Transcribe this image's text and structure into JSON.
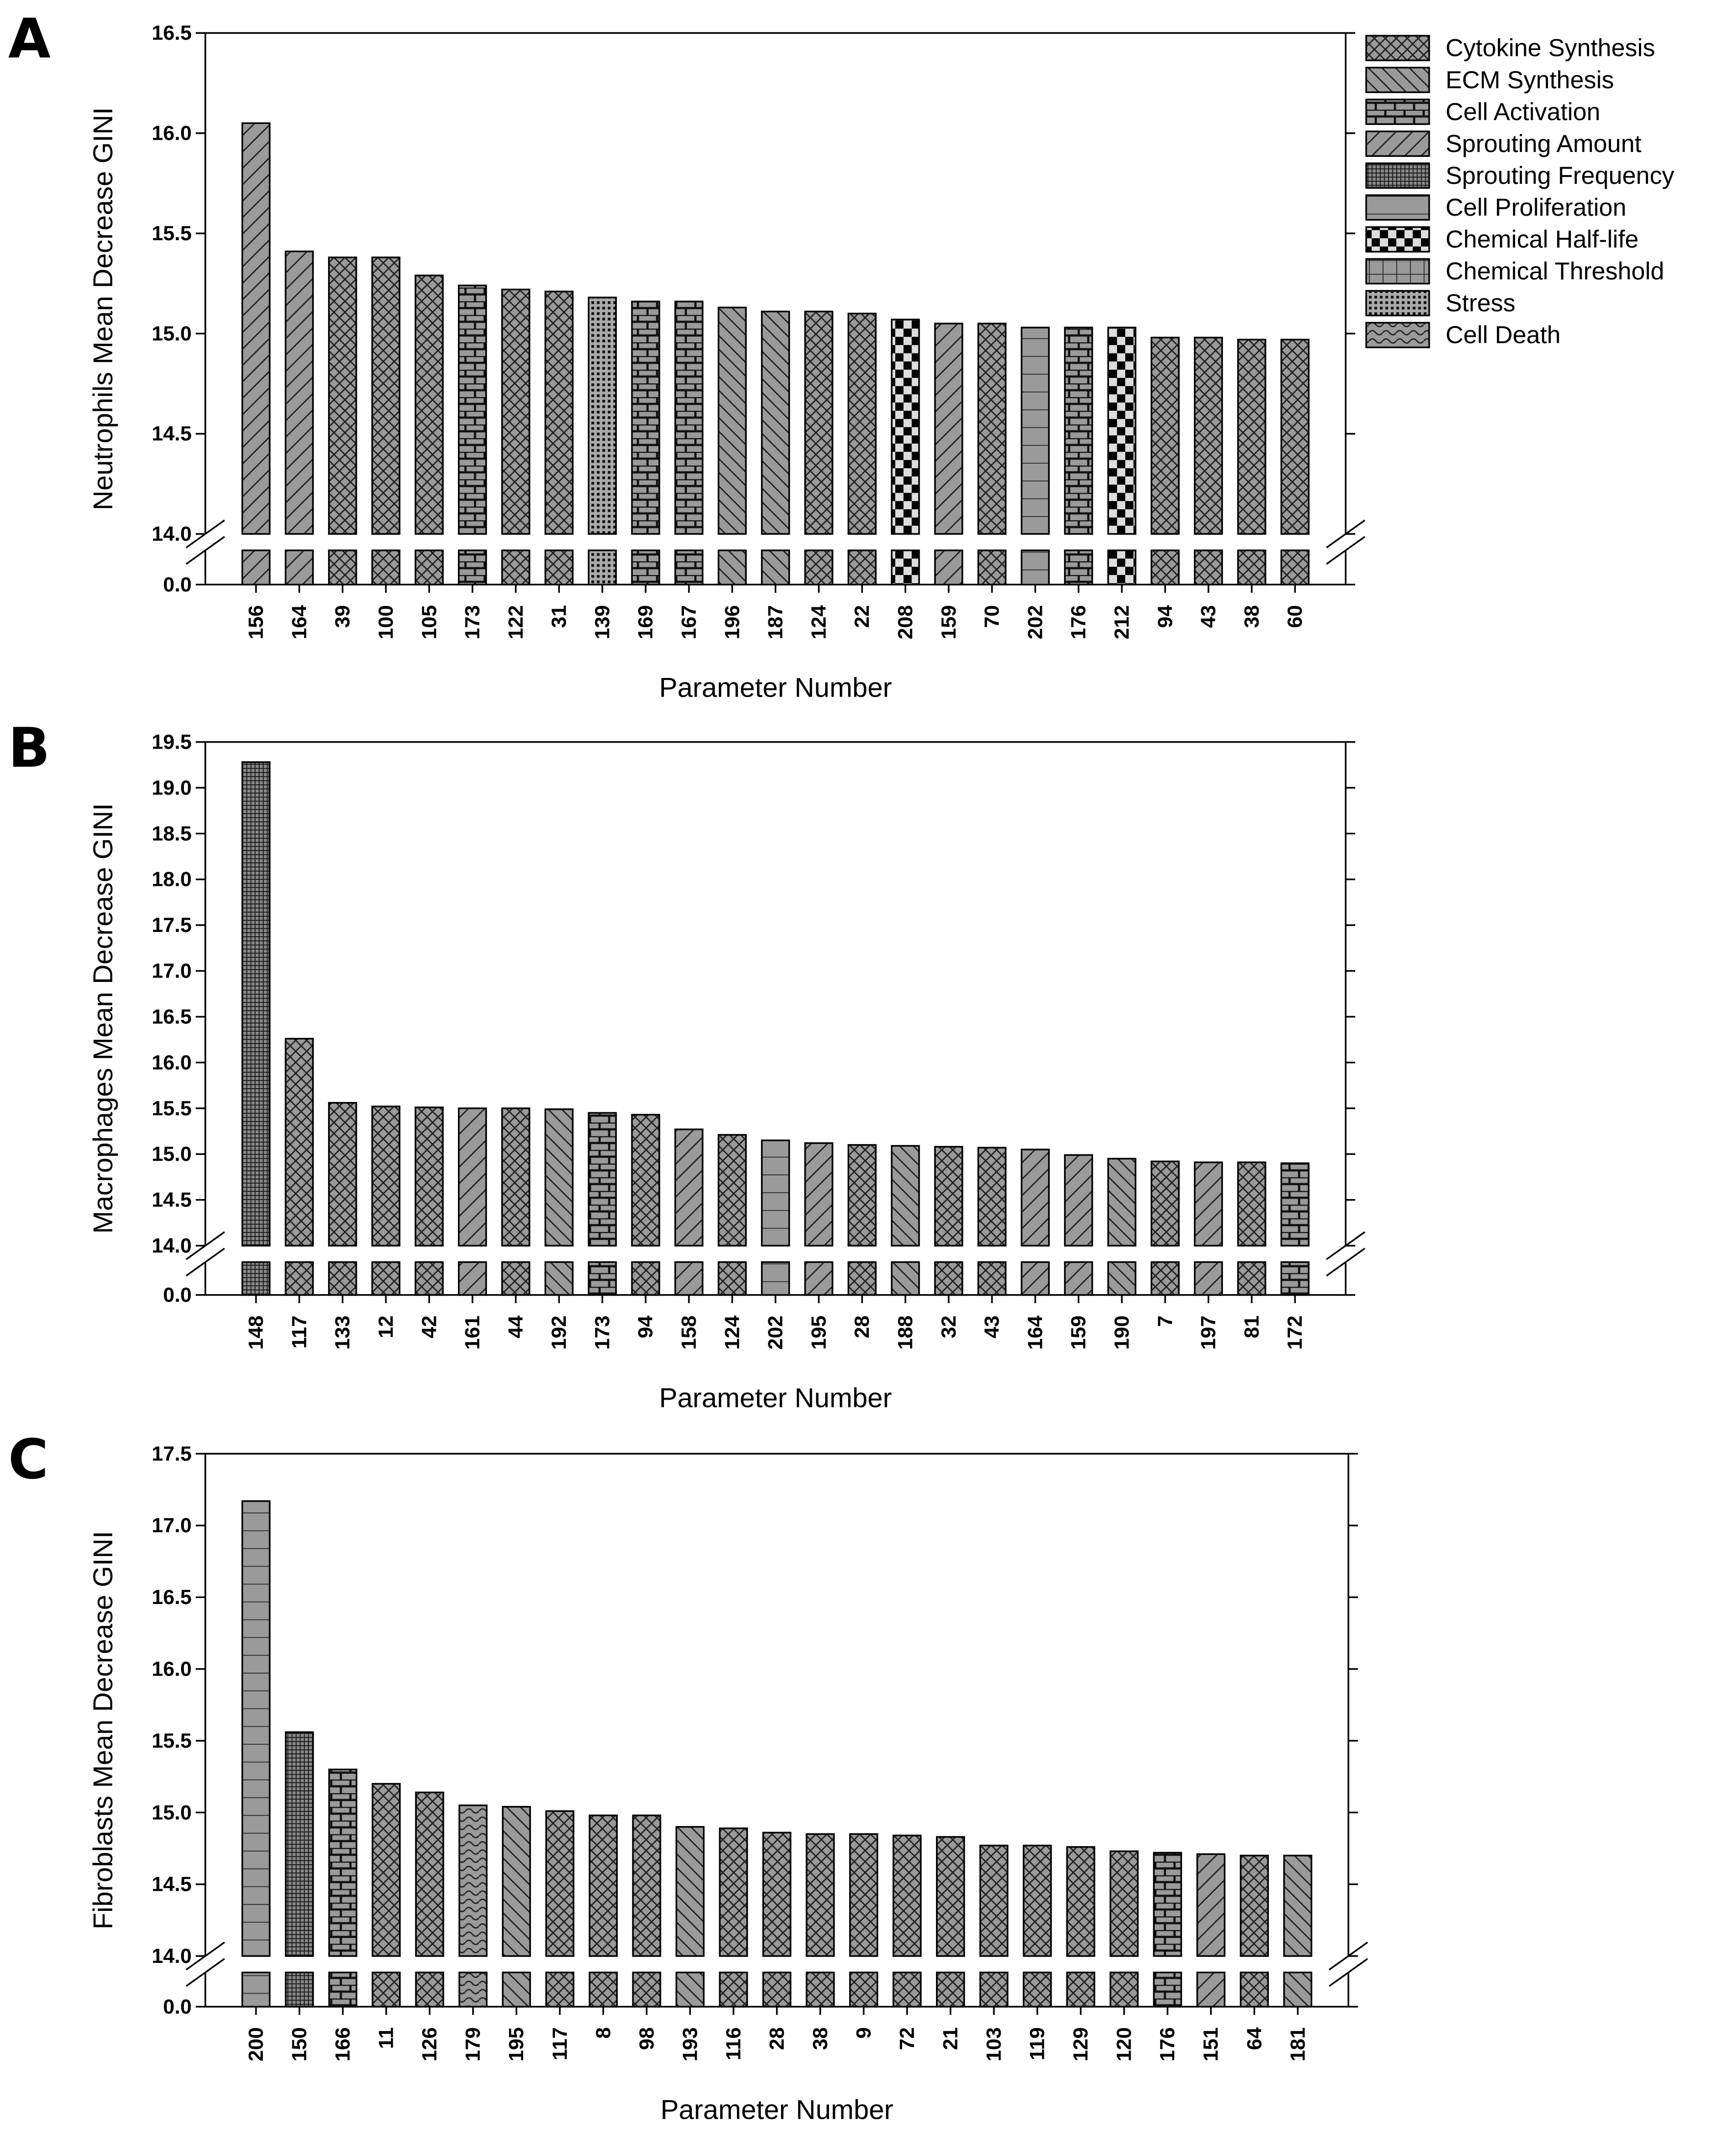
{
  "chart_data": [
    {
      "type": "bar",
      "label": "A",
      "ylabel": "Neutrophils Mean Decrease GINI",
      "xlabel": "Parameter Number",
      "axis_break": true,
      "ylim": [
        0,
        16.5
      ],
      "yticks": [
        {
          "value": 0,
          "label": "0.0"
        },
        {
          "value": 14,
          "label": "14.0"
        },
        14.5,
        {
          "value": 15,
          "label": "15.0"
        },
        15.5,
        {
          "value": 16,
          "label": "16.0"
        },
        16.5
      ],
      "categories": [
        "156",
        "164",
        "39",
        "100",
        "105",
        "173",
        "122",
        "31",
        "139",
        "169",
        "167",
        "196",
        "187",
        "124",
        "22",
        "208",
        "159",
        "70",
        "202",
        "176",
        "212",
        "94",
        "43",
        "38",
        "60"
      ],
      "values": [
        16.05,
        15.41,
        15.38,
        15.38,
        15.29,
        15.24,
        15.22,
        15.21,
        15.18,
        15.16,
        15.16,
        15.13,
        15.11,
        15.11,
        15.1,
        15.07,
        15.05,
        15.05,
        15.03,
        15.03,
        15.03,
        14.98,
        14.98,
        14.97,
        14.97
      ],
      "classes": [
        "Sprouting Amount",
        "Sprouting Amount",
        "Cytokine Synthesis",
        "Cytokine Synthesis",
        "Cytokine Synthesis",
        "Cell Activation",
        "Cytokine Synthesis",
        "Cytokine Synthesis",
        "Stress",
        "Cell Activation",
        "Cell Activation",
        "ECM Synthesis",
        "ECM Synthesis",
        "Cytokine Synthesis",
        "Cytokine Synthesis",
        "Chemical Half-life",
        "Sprouting Amount",
        "Cytokine Synthesis",
        "Cell Proliferation",
        "Cell Activation",
        "Chemical Half-life",
        "Cytokine Synthesis",
        "Cytokine Synthesis",
        "Cytokine Synthesis",
        "Cytokine Synthesis"
      ],
      "legend_position": "upper right",
      "legend": [
        {
          "name": "Cytokine Synthesis",
          "pattern": "crosshatch"
        },
        {
          "name": "ECM Synthesis",
          "pattern": "backslash"
        },
        {
          "name": "Cell Activation",
          "pattern": "brick"
        },
        {
          "name": "Sprouting Amount",
          "pattern": "slash"
        },
        {
          "name": "Sprouting Frequency",
          "pattern": "densegrid"
        },
        {
          "name": "Cell Proliferation",
          "pattern": "hlines"
        },
        {
          "name": "Chemical Half-life",
          "pattern": "checker"
        },
        {
          "name": "Chemical Threshold",
          "pattern": "grid"
        },
        {
          "name": "Stress",
          "pattern": "dots"
        },
        {
          "name": "Cell Death",
          "pattern": "wave"
        }
      ]
    },
    {
      "type": "bar",
      "label": "B",
      "ylabel": "Macrophages Mean Decrease GINI",
      "xlabel": "Parameter Number",
      "axis_break": true,
      "ylim": [
        0,
        19.5
      ],
      "yticks": [
        {
          "value": 0,
          "label": "0.0"
        },
        {
          "value": 14,
          "label": "14.0"
        },
        14.5,
        {
          "value": 15,
          "label": "15.0"
        },
        15.5,
        {
          "value": 16,
          "label": "16.0"
        },
        16.5,
        {
          "value": 17,
          "label": "17.0"
        },
        17.5,
        {
          "value": 18,
          "label": "18.0"
        },
        18.5,
        {
          "value": 19,
          "label": "19.0"
        },
        19.5
      ],
      "categories": [
        "148",
        "117",
        "133",
        "12",
        "42",
        "161",
        "44",
        "192",
        "173",
        "94",
        "158",
        "124",
        "202",
        "195",
        "28",
        "188",
        "32",
        "43",
        "164",
        "159",
        "190",
        "7",
        "197",
        "81",
        "172"
      ],
      "values": [
        19.28,
        16.26,
        15.56,
        15.52,
        15.51,
        15.5,
        15.5,
        15.49,
        15.45,
        15.43,
        15.27,
        15.21,
        15.15,
        15.12,
        15.1,
        15.09,
        15.08,
        15.07,
        15.05,
        14.99,
        14.95,
        14.92,
        14.91,
        14.91,
        14.9
      ],
      "classes": [
        "Sprouting Frequency",
        "Cytokine Synthesis",
        "Cytokine Synthesis",
        "Cytokine Synthesis",
        "Cytokine Synthesis",
        "Sprouting Amount",
        "Cytokine Synthesis",
        "ECM Synthesis",
        "Cell Activation",
        "Cytokine Synthesis",
        "Sprouting Amount",
        "Cytokine Synthesis",
        "Cell Proliferation",
        "Sprouting Amount",
        "Cytokine Synthesis",
        "ECM Synthesis",
        "Cytokine Synthesis",
        "Cytokine Synthesis",
        "Sprouting Amount",
        "Sprouting Amount",
        "ECM Synthesis",
        "Cytokine Synthesis",
        "Sprouting Amount",
        "Cytokine Synthesis",
        "Cell Activation"
      ]
    },
    {
      "type": "bar",
      "label": "C",
      "ylabel": "Fibroblasts Mean Decrease GINI",
      "xlabel": "Parameter Number",
      "axis_break": true,
      "ylim": [
        0,
        17.5
      ],
      "yticks": [
        {
          "value": 0,
          "label": "0.0"
        },
        {
          "value": 14,
          "label": "14.0"
        },
        14.5,
        {
          "value": 15,
          "label": "15.0"
        },
        15.5,
        {
          "value": 16,
          "label": "16.0"
        },
        16.5,
        {
          "value": 17,
          "label": "17.0"
        },
        17.5
      ],
      "categories": [
        "200",
        "150",
        "166",
        "11",
        "126",
        "179",
        "195",
        "117",
        "8",
        "98",
        "193",
        "116",
        "28",
        "38",
        "9",
        "72",
        "21",
        "103",
        "119",
        "129",
        "120",
        "176",
        "151",
        "64",
        "181"
      ],
      "values": [
        17.17,
        15.56,
        15.3,
        15.2,
        15.14,
        15.05,
        15.04,
        15.01,
        14.98,
        14.98,
        14.9,
        14.89,
        14.86,
        14.85,
        14.85,
        14.84,
        14.83,
        14.77,
        14.77,
        14.76,
        14.73,
        14.72,
        14.71,
        14.7,
        14.7
      ],
      "classes": [
        "Cell Proliferation",
        "Sprouting Frequency",
        "Cell Activation",
        "Cytokine Synthesis",
        "Cytokine Synthesis",
        "Cell Death",
        "ECM Synthesis",
        "Cytokine Synthesis",
        "Cytokine Synthesis",
        "Cytokine Synthesis",
        "ECM Synthesis",
        "Cytokine Synthesis",
        "Cytokine Synthesis",
        "Cytokine Synthesis",
        "Cytokine Synthesis",
        "Cytokine Synthesis",
        "Cytokine Synthesis",
        "Cytokine Synthesis",
        "Cytokine Synthesis",
        "Cytokine Synthesis",
        "Cytokine Synthesis",
        "Cell Activation",
        "Sprouting Amount",
        "Cytokine Synthesis",
        "ECM Synthesis"
      ]
    }
  ]
}
